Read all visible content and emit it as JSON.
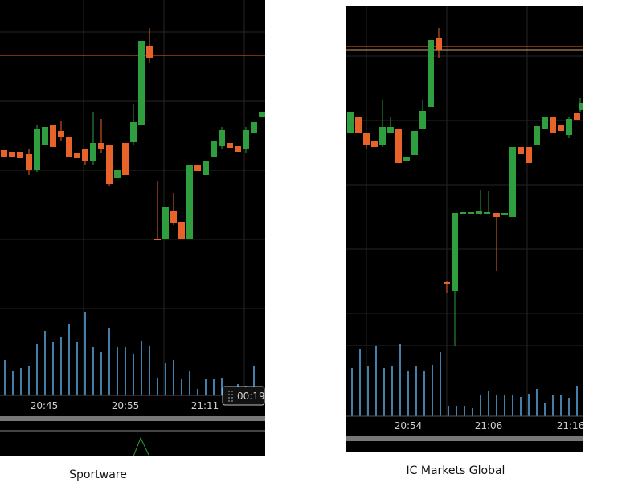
{
  "left": {
    "time_labels": [
      "20:45",
      "20:55",
      "21:11"
    ],
    "timer": "00:19",
    "caption": "Sportware"
  },
  "right": {
    "time_labels": [
      "20:54",
      "21:06",
      "21:16"
    ],
    "caption": "IC Markets Global"
  }
}
